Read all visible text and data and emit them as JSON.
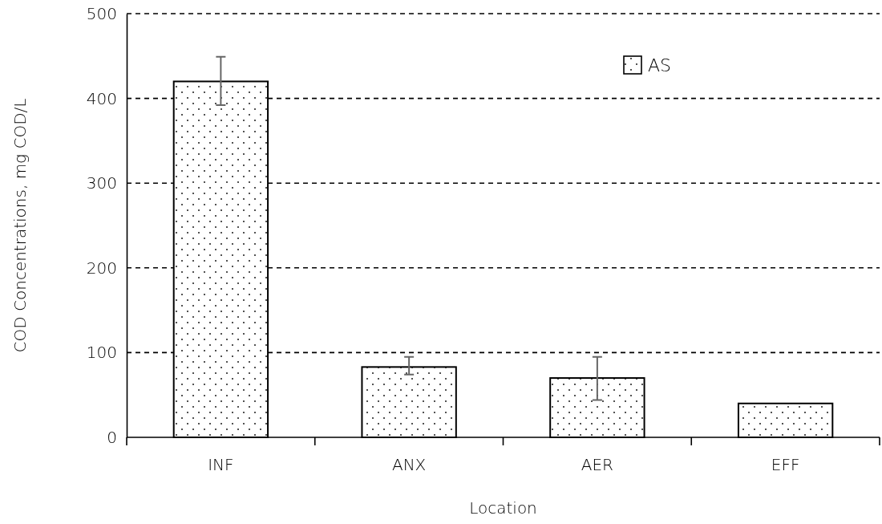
{
  "chart_data": {
    "type": "bar",
    "xlabel": "Location",
    "ylabel": "COD Concentrations,  mg COD/L",
    "categories": [
      "INF",
      "ANX",
      "AER",
      "EFF"
    ],
    "series": [
      {
        "name": "AS",
        "color": "#000000",
        "values": [
          420,
          83,
          70,
          40
        ],
        "errors": [
          [
            392,
            449
          ],
          [
            74,
            95
          ],
          [
            44,
            95
          ],
          null
        ]
      }
    ],
    "ylim": [
      0,
      500
    ],
    "yticks": [
      0,
      100,
      200,
      300,
      400,
      500
    ],
    "grid": "y",
    "legend": "top right"
  }
}
